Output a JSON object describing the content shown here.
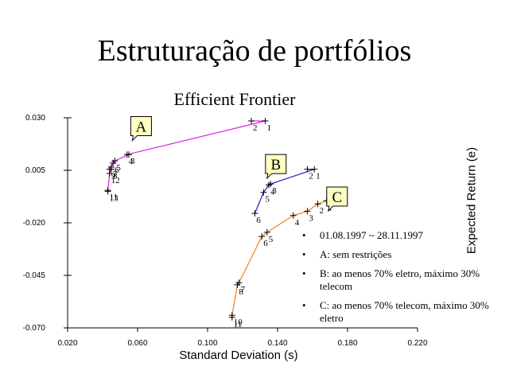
{
  "page": {
    "title": "Estruturação de portfólios"
  },
  "legend_notes": [
    "01.08.1997 ~ 28.11.1997",
    "A: sem restrições",
    "B: ao menos 70% eletro, máximo 30% telecom",
    "C: ao menos 70% telecom, máximo 30% eletro"
  ],
  "chart_data": {
    "type": "scatter",
    "title": "Efficient Frontier",
    "xlabel": "Standard Deviation (s)",
    "ylabel": "Expected Return (e)",
    "xlim": [
      0.02,
      0.22
    ],
    "ylim": [
      -0.07,
      0.03
    ],
    "xticks": [
      "0.020",
      "0.060",
      "0.100",
      "0.140",
      "0.180",
      "0.220"
    ],
    "yticks": [
      "0.030",
      "0.005",
      "-0.020",
      "-0.045",
      "-0.070"
    ],
    "xtick_values": [
      0.02,
      0.06,
      0.1,
      0.14,
      0.18,
      0.22
    ],
    "ytick_values": [
      0.03,
      0.005,
      -0.02,
      -0.045,
      -0.07
    ],
    "grid": false,
    "series": [
      {
        "name": "A",
        "color": "#e020e0",
        "points": [
          {
            "x": 0.133,
            "y": 0.0285,
            "label": "1"
          },
          {
            "x": 0.125,
            "y": 0.0285,
            "label": "2"
          },
          {
            "x": 0.055,
            "y": 0.0125,
            "label": "3"
          },
          {
            "x": 0.054,
            "y": 0.0125,
            "label": "4"
          },
          {
            "x": 0.047,
            "y": 0.0095,
            "label": "5"
          },
          {
            "x": 0.046,
            "y": 0.0085,
            "label": "6"
          },
          {
            "x": 0.045,
            "y": 0.0065,
            "label": "7"
          },
          {
            "x": 0.045,
            "y": 0.0055,
            "label": "8"
          },
          {
            "x": 0.044,
            "y": 0.0055,
            "label": "9"
          },
          {
            "x": 0.044,
            "y": 0.0035,
            "label": "12"
          },
          {
            "x": 0.043,
            "y": -0.0045,
            "label": "11"
          },
          {
            "x": 0.043,
            "y": -0.005,
            "label": "13"
          }
        ]
      },
      {
        "name": "B",
        "color": "#2020c0",
        "points": [
          {
            "x": 0.161,
            "y": 0.0055,
            "label": "1"
          },
          {
            "x": 0.157,
            "y": 0.0055,
            "label": "2"
          },
          {
            "x": 0.136,
            "y": -0.0015,
            "label": "3"
          },
          {
            "x": 0.135,
            "y": -0.002,
            "label": "4"
          },
          {
            "x": 0.132,
            "y": -0.0055,
            "label": "5"
          },
          {
            "x": 0.127,
            "y": -0.0155,
            "label": "6"
          }
        ]
      },
      {
        "name": "C",
        "color": "#f08020",
        "points": [
          {
            "x": 0.168,
            "y": -0.0095,
            "label": "1"
          },
          {
            "x": 0.163,
            "y": -0.011,
            "label": "2"
          },
          {
            "x": 0.157,
            "y": -0.0145,
            "label": "3"
          },
          {
            "x": 0.149,
            "y": -0.0165,
            "label": "4"
          },
          {
            "x": 0.134,
            "y": -0.0245,
            "label": "5"
          },
          {
            "x": 0.131,
            "y": -0.0265,
            "label": "6"
          },
          {
            "x": 0.118,
            "y": -0.0485,
            "label": "7"
          },
          {
            "x": 0.117,
            "y": -0.0495,
            "label": "8"
          },
          {
            "x": 0.114,
            "y": -0.064,
            "label": "10"
          },
          {
            "x": 0.114,
            "y": -0.065,
            "label": "11"
          }
        ]
      }
    ]
  }
}
